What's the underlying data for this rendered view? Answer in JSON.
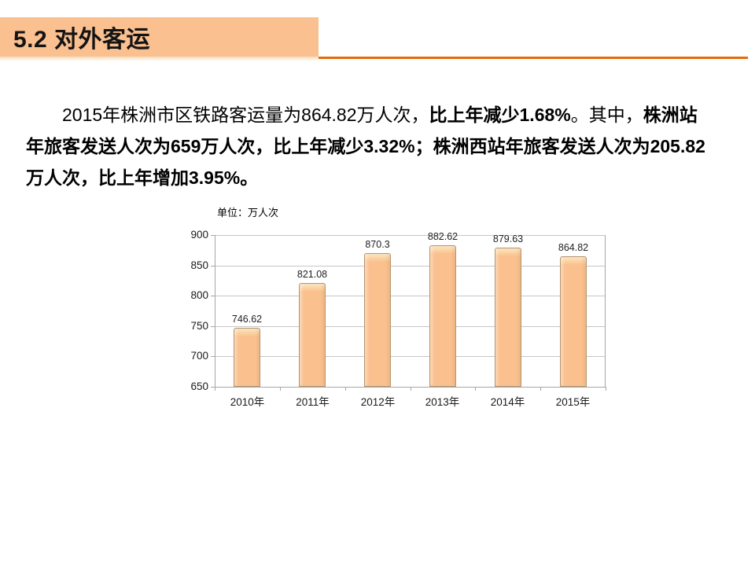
{
  "slide": {
    "title": "5.2 对外客运",
    "paragraph": {
      "p1": "2015年株洲市区铁路客运量为864.82万人次，",
      "p2": "比上年减少1.68%",
      "p3": "。其中，",
      "p4": "株洲站年旅客发送人次为659万人次，比上年减少3.32%；株洲西站年旅客发送人次为205.82万人次，比上年增加3.95%。"
    },
    "colors": {
      "title_bg": "#FAC090",
      "accent_line": "#E36C0A",
      "bar_fill": "#FAC18F",
      "bar_fill_mid": "#FBD4A4",
      "bar_highlight": "#FDE7C6",
      "bar_border": "#B5946E",
      "gridline": "#C6C6C6",
      "axis": "#A6A6A6"
    }
  },
  "chart_data": {
    "type": "bar",
    "title": "",
    "unit_label": "单位：万人次",
    "categories": [
      "2010年",
      "2011年",
      "2012年",
      "2013年",
      "2014年",
      "2015年"
    ],
    "values": [
      746.62,
      821.08,
      870.3,
      882.62,
      879.63,
      864.82
    ],
    "value_labels": [
      "746.62",
      "821.08",
      "870.3",
      "882.62",
      "879.63",
      "864.82"
    ],
    "xlabel": "",
    "ylabel": "万人次",
    "ylim": [
      650,
      900
    ],
    "yticks": [
      650,
      700,
      750,
      800,
      850,
      900
    ],
    "grid": true,
    "legend": "none"
  }
}
